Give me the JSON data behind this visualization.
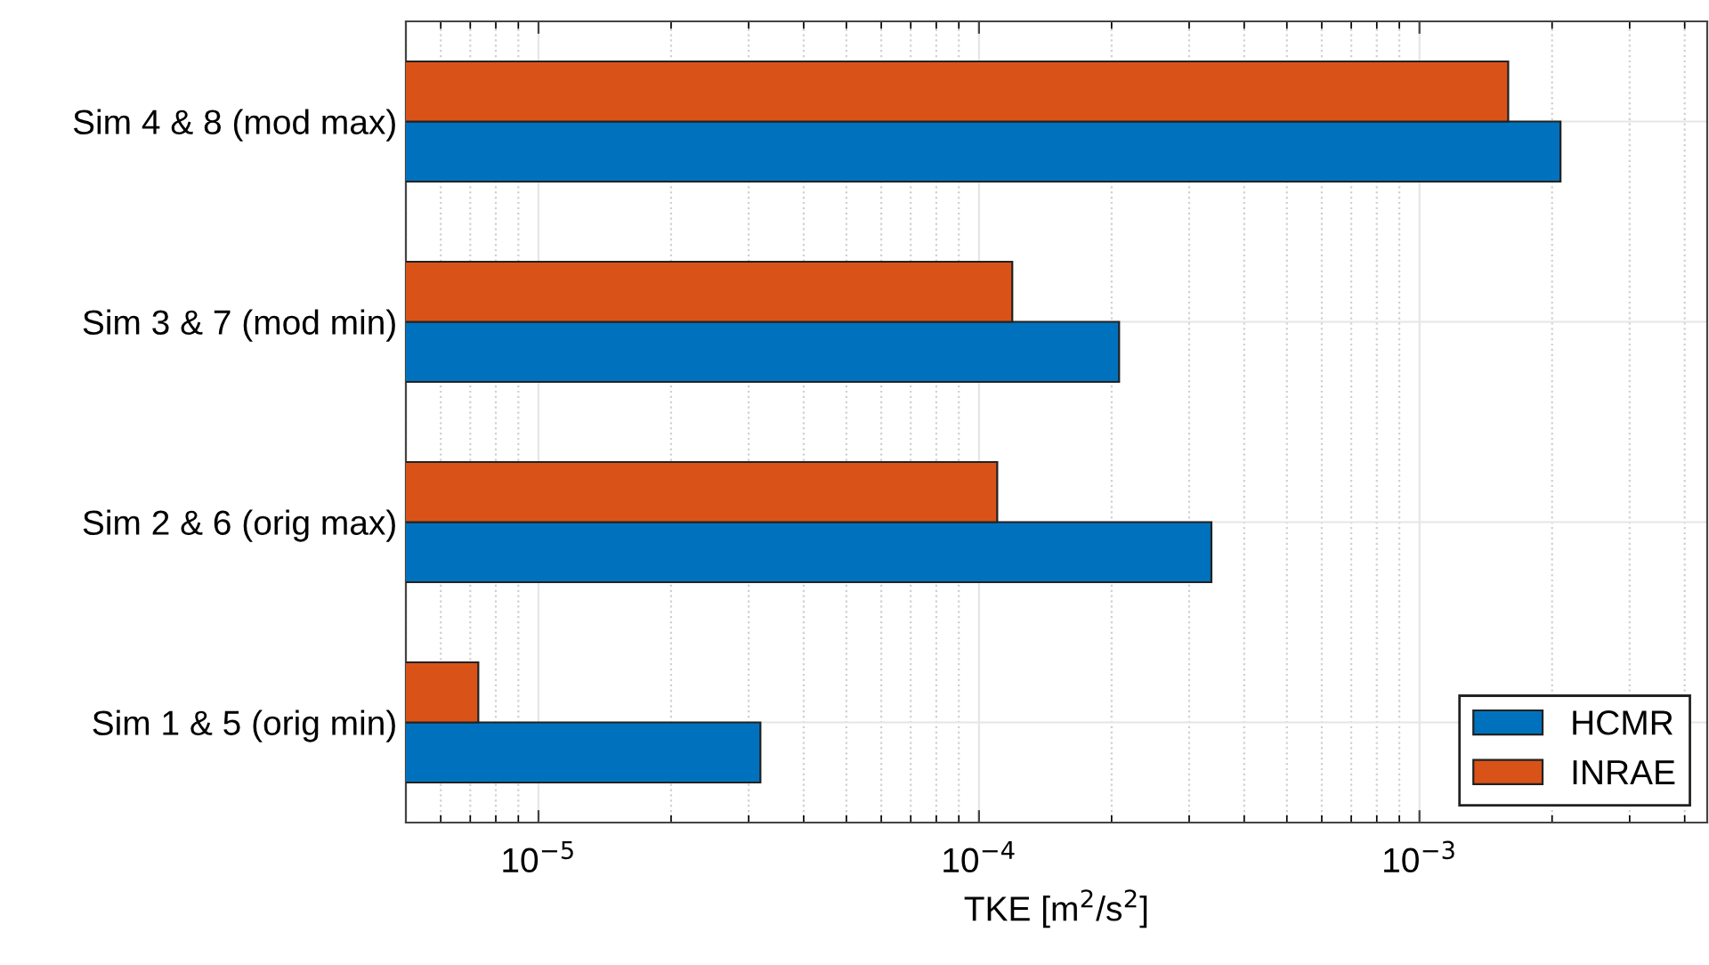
{
  "chart_data": {
    "type": "bar",
    "orientation": "horizontal",
    "log": "x",
    "xlabel": "TKE [m$^{2}$/s$^{2}$]",
    "categories": [
      "Sim 4 & 8 (mod max)",
      "Sim 3 & 7 (mod min)",
      "Sim 2 & 6 (orig max)",
      "Sim 1 & 5 (orig min)"
    ],
    "series": [
      {
        "name": "HCMR",
        "color": "#0072bd",
        "values": [
          0.00209,
          0.000208,
          0.000337,
          3.19e-05
        ]
      },
      {
        "name": "INRAE",
        "color": "#d95319",
        "values": [
          0.00159,
          0.000119,
          0.00011,
          7.3e-06
        ]
      }
    ],
    "xlim": [
      5e-06,
      0.0045
    ],
    "xticks": [
      {
        "value": 1e-05,
        "label": "10$^{−5}$"
      },
      {
        "value": 0.0001,
        "label": "10$^{−4}$"
      },
      {
        "value": 0.001,
        "label": "10$^{−3}$"
      }
    ],
    "grid": true,
    "legend": "bottom right"
  }
}
